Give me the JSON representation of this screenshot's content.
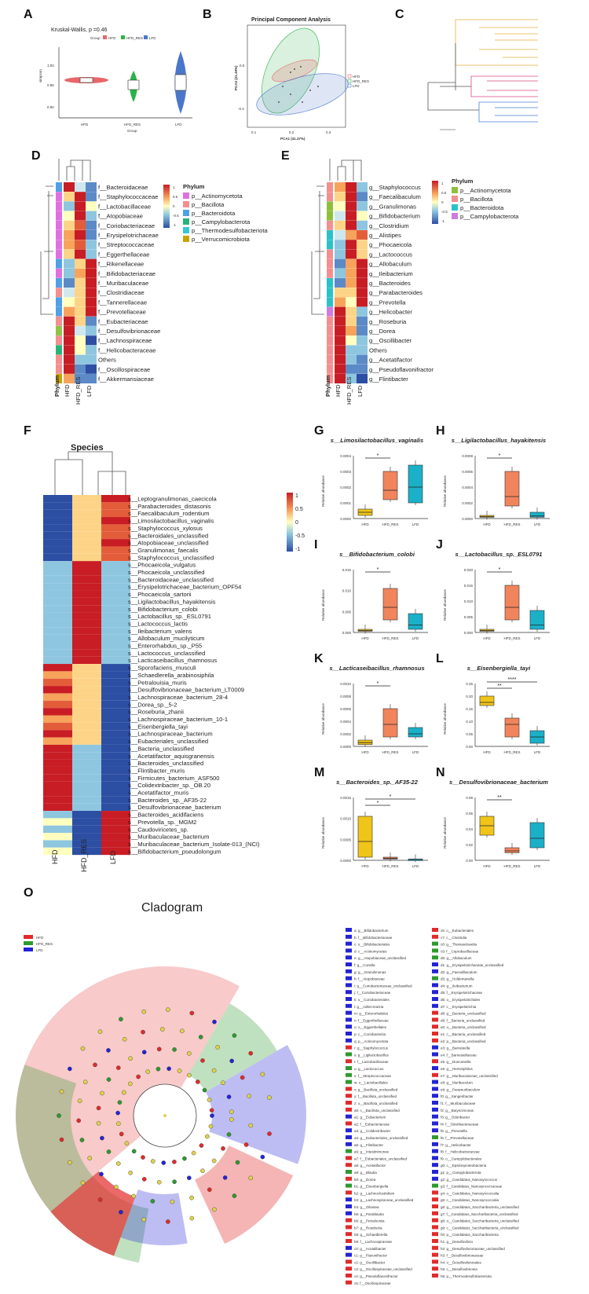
{
  "panels": {
    "A": "A",
    "B": "B",
    "C": "C",
    "D": "D",
    "E": "E",
    "F": "F",
    "G": "G",
    "H": "H",
    "I": "I",
    "J": "J",
    "K": "K",
    "L": "L",
    "M": "M",
    "N": "N",
    "O": "O"
  },
  "colors": {
    "HFD": "#e8666a",
    "HFD_RES": "#2bb34a",
    "LFD": "#4a77c9",
    "yellow": "#f0c419",
    "orange": "#f2845c",
    "teal": "#1ab0c8"
  },
  "panelA": {
    "annotation": "Kruskal-Wallis, p =0.46",
    "legend_title": "Group",
    "groups": [
      "HFD",
      "HFD_RES",
      "LFD"
    ],
    "ylabel": "simpson",
    "xlabel": "Group",
    "yticks": [
      "1.00",
      "0.95",
      "0.90"
    ]
  },
  "panelB": {
    "title": "Principal Component Analysis",
    "xlabel": "PCA1 (41.37%)",
    "ylabel": "PCA2 (21.49%)",
    "legend": [
      "HFD",
      "HFD_RES",
      "LFD"
    ],
    "xticks": [
      "0.1",
      "0.2",
      "0.3"
    ],
    "yticks": [
      "0.0",
      "-0.4"
    ]
  },
  "phylum_legend_D": {
    "title": "Phylum",
    "items": [
      "p__Actinomycetota",
      "p__Bacillota",
      "p__Bacteroidota",
      "p__Campylobacterota",
      "p__Thermodesulfobacteriota",
      "p__Verrucomicrobiota"
    ]
  },
  "phylum_legend_E": {
    "title": "Phylum",
    "items": [
      "p__Actinomycetota",
      "p__Bacillota",
      "p__Bacteroidota",
      "p__Campylobacterota"
    ]
  },
  "scale_ticks": [
    "1",
    "0.5",
    "0",
    "-0.5",
    "-1"
  ],
  "heatmap_cols": {
    "phylum": "Phylum",
    "HFD": "HFD",
    "HFD_RES": "HFD_RES",
    "LFD": "LFD"
  },
  "panelD_rows": [
    "f__Bacteroidaceae",
    "f__Staphylococcaceae",
    "f__Lactobacillaceae",
    "f__Atopobiaceae",
    "f__Coriobacteriaceae",
    "f__Erysipelotrichaceae",
    "f__Streptococcaceae",
    "f__Eggerthellaceae",
    "f__Rikenellaceae",
    "f__Bifidobacteriaceae",
    "f__Muribaculaceae",
    "f__Clostridiaceae",
    "f__Tannerellaceae",
    "f__Prevotellaceae",
    "f__Eubacteriaceae",
    "f__Desulfovibrionaceae",
    "f__Lachnospiraceae",
    "f__Helicobacteraceae",
    "Others",
    "f__Oscillospiraceae",
    "f__Akkermansiaceae"
  ],
  "panelE_rows": [
    "g__Staphylococcus",
    "g__Faecalibaculum",
    "g__Granulimonas",
    "g__Bifidobacterium",
    "g__Clostridium",
    "g__Alistipes",
    "g__Phocaeicola",
    "g__Lactococcus",
    "g__Allobaculum",
    "g__Ileibacterium",
    "g__Bacteroides",
    "g__Parabacteroides",
    "g__Prevotella",
    "g__Helicobacter",
    "g__Roseburia",
    "g__Dorea",
    "g__Oscillibacter",
    "Others",
    "g__Acetatifactor",
    "g__Pseudoflavonifractor",
    "g__Flintibacter"
  ],
  "panelF": {
    "title": "Species",
    "rows": [
      "s__Leptogranulimonas_caecicola",
      "s__Parabacteroides_distasonis",
      "s__Faecalibaculum_rodentium",
      "s__Limosilactobacillus_vaginalis",
      "s__Staphylococcus_xylosus",
      "s__Bacteroidales_unclassified",
      "s__Atopobiaceae_unclassified",
      "s__Granulimonas_faecalis",
      "s__Staphylococcus_unclassified",
      "s__Phocaeicola_vulgatus",
      "s__Phocaeicola_unclassified",
      "s__Bacteroidaceae_unclassified",
      "s__Erysipelotrichaceae_bacterium_OPF54",
      "s__Phocaeicola_sartorii",
      "s__Ligilactobacillus_hayakitensis",
      "s__Bifidobacterium_colobi",
      "s__Lactobacillus_sp._ESL0791",
      "s__Lactococcus_lactis",
      "s__Ileibacterium_valens",
      "s__Allobaculum_mucilyticum",
      "s__Enterorhabdus_sp._P55",
      "s__Lactococcus_unclassified",
      "s__Lacticaseibacillus_rhamnosus",
      "s__Sporofaciens_musculi",
      "s__Schaedlerella_arabinosiphila",
      "s__Petralouisia_muris",
      "s__Desulfovibrionaceae_bacterium_LT0009",
      "s__Lachnospiraceae_bacterium_28-4",
      "s__Dorea_sp._5-2",
      "s__Roseburia_zhanii",
      "s__Lachnospiraceae_bacterium_10-1",
      "s__Eisenbergiella_tayi",
      "s__Lachnospiraceae_bacterium",
      "s__Eubacteriales_unclassified",
      "s__Bacteria_unclassified",
      "s__Acetatifactor_aquisgranensis",
      "s__Bacteroides_unclassified",
      "s__Flintibacter_muris",
      "s__Firmicutes_bacterium_ASF500",
      "s__Colidextribacter_sp._OB.20",
      "s__Acetatifactor_muris",
      "s__Bacteroides_sp._AF35-22",
      "s__Desulfovibrionaceae_bacterium",
      "s__Bacteroides_acidifaciens",
      "s__Prevotella_sp._MGM2",
      "s__Caudoviricetes_sp.",
      "s__Muribaculaceae_bacterium",
      "s__Muribaculaceae_bacterium_Isolate-013_(NCI)",
      "s__Bifidobacterium_pseudolongum"
    ]
  },
  "boxplots": [
    {
      "panel": "G",
      "title": "s__Limosilactobacillus_vaginalis",
      "yticks": [
        "0.0004",
        "0.0003",
        "0.0002",
        "0.0001",
        "0.0000"
      ],
      "sig": [
        "*"
      ]
    },
    {
      "panel": "H",
      "title": "s__Ligilactobacillus_hayakitensis",
      "yticks": [
        "0.0008",
        "0.0006",
        "0.0004",
        "0.0002",
        "0.0000"
      ],
      "sig": [
        "*"
      ]
    },
    {
      "panel": "I",
      "title": "s__Bifidobacterium_colobi",
      "yticks": [
        "0.015",
        "0.010",
        "0.005",
        "0.000"
      ],
      "sig": [
        "*"
      ]
    },
    {
      "panel": "J",
      "title": "s__Lactobacillus_sp._ESL0791",
      "yticks": [
        "0.020",
        "0.015",
        "0.010",
        "0.005",
        "0.000"
      ],
      "sig": [
        "*"
      ]
    },
    {
      "panel": "K",
      "title": "s__Lacticaseibacillus_rhamnosus",
      "yticks": [
        "0.0010",
        "0.0008",
        "0.0006",
        "0.0004",
        "0.0002",
        "0.0000"
      ],
      "sig": [
        "*"
      ]
    },
    {
      "panel": "L",
      "title": "s__Eisenbergiella_tayi",
      "yticks": [
        "0.25",
        "0.20",
        "0.15",
        "0.10",
        "0.05",
        "0.00"
      ],
      "sig": [
        "****",
        "**"
      ]
    },
    {
      "panel": "M",
      "title": "s__Bacteroides_sp._AF35-22",
      "yticks": [
        "0.0015",
        "0.0010",
        "0.0005",
        "0.0000"
      ],
      "sig": [
        "*",
        "*"
      ]
    },
    {
      "panel": "N",
      "title": "s__Desulfovibrionaceae_bacterium",
      "yticks": [
        "0.08",
        "0.06",
        "0.04",
        "0.02",
        "0.00"
      ],
      "sig": [
        "**"
      ]
    }
  ],
  "box_groups": [
    "HFD",
    "HFD_RES",
    "LFD"
  ],
  "box_ylabel": "Relative abundance",
  "cladogram": {
    "title": "Cladogram",
    "legend": [
      "HFD",
      "HFD_RES",
      "LFD"
    ],
    "key_col1": [
      "a: g__Bifidobacterium",
      "b: f__Bifidobacteriaceae",
      "c: o__Bifidobacteriales",
      "d: c__Actinomycetes",
      "e: g__Atopobiaceae_unclassified",
      "f: g__Coriella",
      "g: g__Granulimonas",
      "h: f__Atopobiaceae",
      "i: g__Coriobacteriaceae_unclassified",
      "j: f__Coriobacteriaceae",
      "k: o__Coriobacteriales",
      "l: g__Adlercreutzia",
      "m: g__Enterorhabdus",
      "n: f__Eggerthellaceae",
      "o: o__Eggerthellales",
      "p: c__Coriobacteriia",
      "q: p__Actinomycetota",
      "r: g__Staphylococcus",
      "s: g__Ligilactobacillus",
      "t: f__Lactobacillaceae",
      "u: g__Lactococcus",
      "v: f__Streptococcaceae",
      "w: o__Lactobacillales",
      "x: g__Bacillota_unclassified",
      "y: f__Bacillota_unclassified",
      "z: o__Bacillota_unclassified",
      "a0: c__Bacillota_unclassified",
      "a1: g__Eubacterium",
      "a2: f__Eubacteriaceae",
      "a3: g__Colidextribacter",
      "a4: g__Eubacteriales_unclassified",
      "a5: g__Flintibacter",
      "a6: g__Intestinimonas",
      "a7: f__Eubacteriales_unclassified",
      "a8: g__Acetatifactor",
      "a9: g__Blautia",
      "b0: g__Dorea",
      "b1: g__Eisenbergiella",
      "b2: g__Lachnoclostridium",
      "b3: g__Lachnospiraceae_unclassified",
      "b4: g__Oliostea",
      "b5: g__Parablautia",
      "b6: g__Petralouisia",
      "b7: g__Roseburia",
      "b8: g__Schaedlerella",
      "b9: f__Lachnospiraceae",
      "c0: g__Acutalibacter",
      "c1: g__Flavonifractor",
      "c2: g__Oscillibacter",
      "c3: g__Oscillospiraceae_unclassified",
      "c4: g__Pseudoflavonifractor",
      "c5: f__Oscillospiraceae"
    ],
    "key_col2": [
      "c6: o__Eubacteriales",
      "c7: c__Clostridia",
      "c8: g__Thomasclavelia",
      "c9: f__Coprobacillaceae",
      "d0: g__Allobaculum",
      "d1: g__Erysipelotrichaceae_unclassified",
      "d2: g__Faecalibaculum",
      "d3: g__Holdemanella",
      "d4: g__Ileibacterium",
      "d5: f__Erysipelotrichaceae",
      "d6: o__Erysipelotrichales",
      "d7: c__Erysipelotrichia",
      "d8: g__Bacteria_unclassified",
      "d9: f__Bacteria_unclassified",
      "e0: o__Bacteria_unclassified",
      "e1: c__Bacteria_unclassified",
      "e2: p__Bacteria_unclassified",
      "e3: g__Barnesiella",
      "e4: f__Barnesiellaceae",
      "e5: g__Duncaniella",
      "e6: g__Heminiphilus",
      "e7: g__Muribaculaceae_unclassified",
      "e8: g__Muribaculum",
      "e9: g__Paramuribaculum",
      "f0: g__Sangeribacter",
      "f1: f__Muribaculaceae",
      "f2: g__Butyricimonas",
      "f3: g__Odoribacter",
      "f4: f__Odoribacteraceae",
      "f5: g__Prevotella",
      "f6: f__Prevotellaceae",
      "f7: g__Helicobacter",
      "f8: f__Helicobacteraceae",
      "f9: o__Campylobacterales",
      "g0: c__Epsilonproteobacteria",
      "g1: p__Campylobacterota",
      "g2: g__Candidatus_Nanosyncoccus",
      "g3: f__Candidatus_Nanosyncoccaceae",
      "g4: o__Candidatus_Nanosyncoccalia",
      "g5: c__Candidatus_Nanosyncoccalia",
      "g6: g__Candidatus_Saccharibacteria_unclassified",
      "g7: f__Candidatus_Saccharibacteria_unclassified",
      "g8: o__Candidatus_Saccharibacteria_unclassified",
      "g9: c__Candidatus_Saccharibacteria_unclassified",
      "h0: p__Candidatus_Saccharibacteria",
      "h1: g__Desulfovibrio",
      "h2: g__Desulfovibrionaceae_unclassified",
      "h3: f__Desulfovibrionaceae",
      "h4: o__Desulfovibrionales",
      "h5: c__Desulfovibrionia",
      "h6: p__Thermodesulfobacteriota"
    ],
    "key_col1_colors": [
      "b",
      "b",
      "b",
      "b",
      "b",
      "b",
      "b",
      "b",
      "b",
      "b",
      "b",
      "b",
      "b",
      "b",
      "b",
      "b",
      "b",
      "r",
      "g",
      "r",
      "g",
      "g",
      "g",
      "r",
      "r",
      "r",
      "r",
      "b",
      "r",
      "b",
      "b",
      "b",
      "g",
      "r",
      "r",
      "g",
      "r",
      "g",
      "r",
      "b",
      "b",
      "b",
      "r",
      "r",
      "r",
      "r",
      "b",
      "b",
      "r",
      "r",
      "r",
      "r"
    ],
    "key_col2_colors": [
      "r",
      "r",
      "g",
      "g",
      "g",
      "b",
      "b",
      "g",
      "b",
      "b",
      "b",
      "b",
      "r",
      "r",
      "r",
      "r",
      "r",
      "b",
      "b",
      "r",
      "b",
      "r",
      "b",
      "b",
      "b",
      "b",
      "b",
      "b",
      "b",
      "b",
      "g",
      "b",
      "b",
      "b",
      "b",
      "b",
      "b",
      "g",
      "r",
      "r",
      "r",
      "r",
      "r",
      "r",
      "r",
      "r",
      "r",
      "r",
      "r",
      "r",
      "r",
      "r"
    ]
  }
}
